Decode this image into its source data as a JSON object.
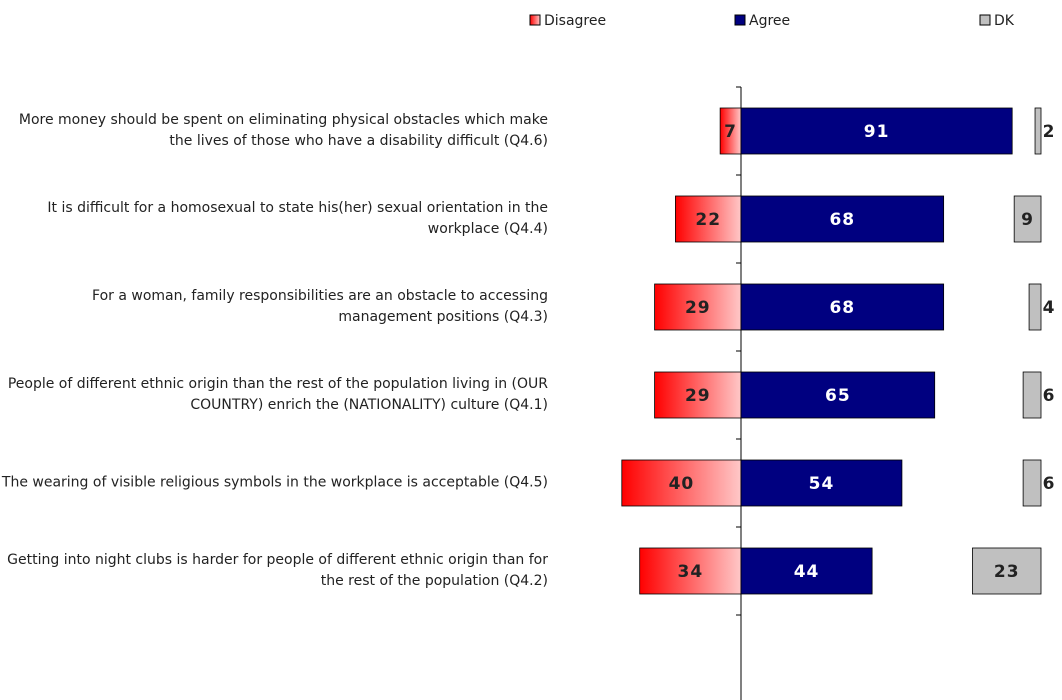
{
  "chart_data": {
    "type": "diverging-bar",
    "categories": [
      "More money should be spent on eliminating physical obstacles which make the lives of those who have a disability difficult (Q4.6)",
      "It is difficult for a homosexual to state his(her) sexual orientation in the workplace (Q4.4)",
      "For a woman, family responsibilities are an obstacle to accessing management positions (Q4.3)",
      "People of different ethnic origin than the rest of the population living in (OUR COUNTRY) enrich the (NATIONALITY) culture (Q4.1)",
      "The wearing of visible religious symbols in the workplace is acceptable (Q4.5)",
      "Getting into night clubs is harder for people of different ethnic origin than for the rest of the population (Q4.2)"
    ],
    "series": [
      {
        "name": "Disagree",
        "color": "#ff0000",
        "values": [
          7,
          22,
          29,
          29,
          40,
          34
        ]
      },
      {
        "name": "Agree",
        "color": "#000080",
        "values": [
          91,
          68,
          68,
          65,
          54,
          44
        ]
      },
      {
        "name": "DK",
        "color": "#c0c0c0",
        "values": [
          2,
          9,
          4,
          6,
          6,
          23
        ]
      }
    ]
  }
}
